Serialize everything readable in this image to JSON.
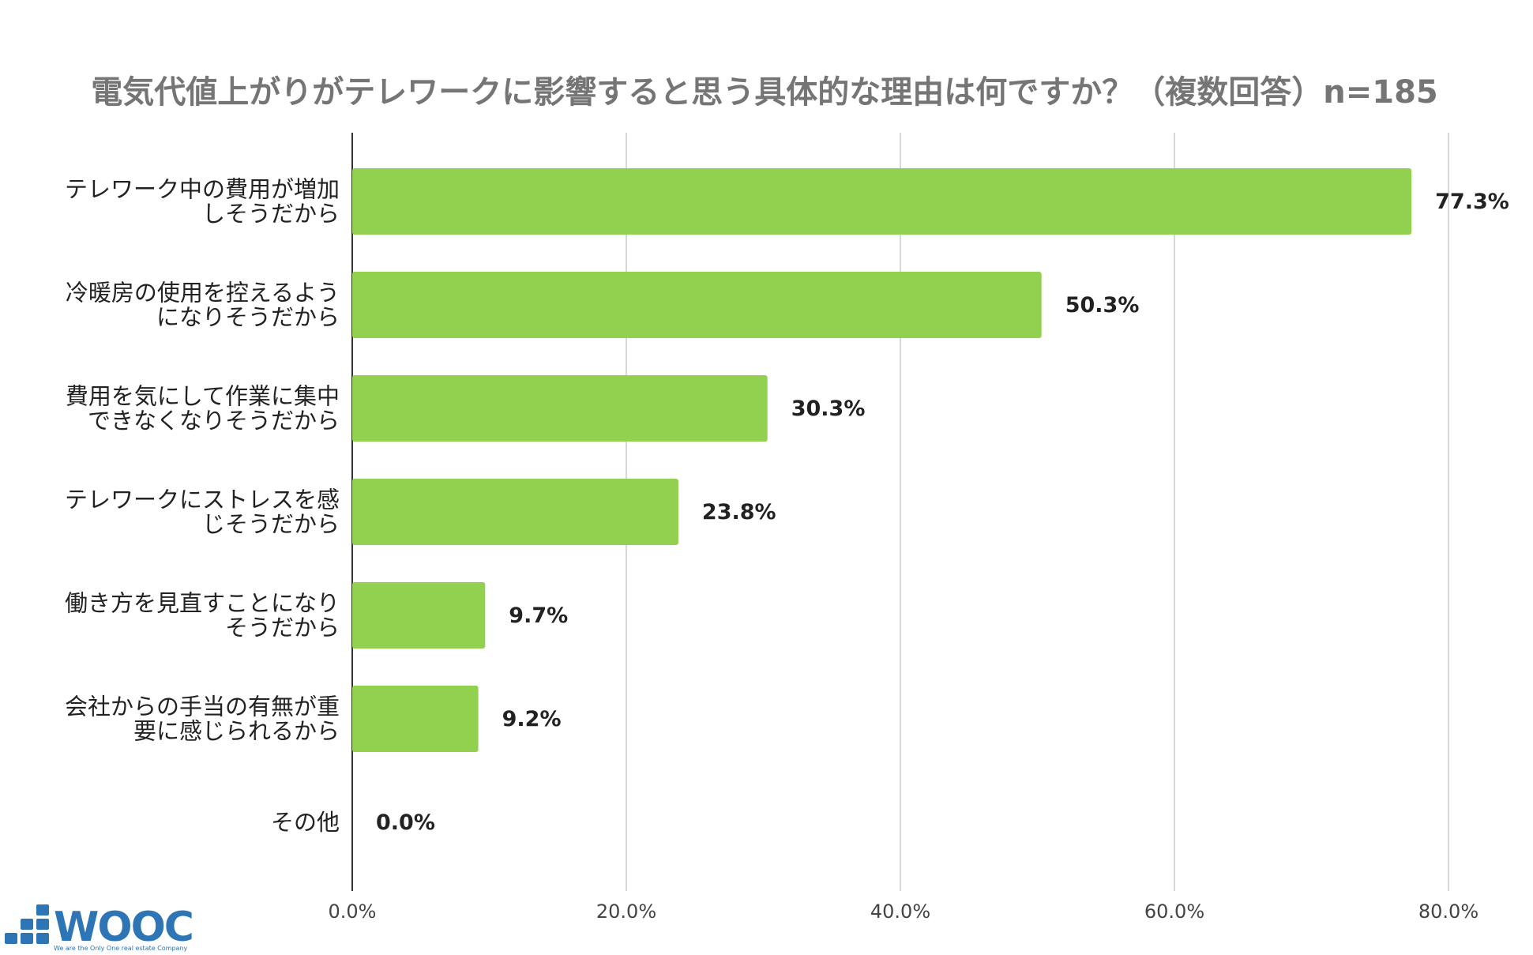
{
  "chart_data": {
    "type": "bar",
    "orientation": "horizontal",
    "title": "電気代値上がりがテレワークに影響すると思う具体的な理由は何ですか？（複数回答）n=185",
    "categories": [
      [
        "テレワーク中の費用が増加",
        "しそうだから"
      ],
      [
        "冷暖房の使用を控えるよう",
        "になりそうだから"
      ],
      [
        "費用を気にして作業に集中",
        "できなくなりそうだから"
      ],
      [
        "テレワークにストレスを感",
        "じそうだから"
      ],
      [
        "働き方を見直すことになり",
        "そうだから"
      ],
      [
        "会社からの手当の有無が重",
        "要に感じられるから"
      ],
      [
        "その他"
      ]
    ],
    "values": [
      77.3,
      50.3,
      30.3,
      23.8,
      9.7,
      9.2,
      0.0
    ],
    "value_labels": [
      "77.3%",
      "50.3%",
      "30.3%",
      "23.8%",
      "9.7%",
      "9.2%",
      "0.0%"
    ],
    "xlim": [
      0,
      80
    ],
    "xticks": [
      0,
      20,
      40,
      60,
      80
    ],
    "xtick_labels": [
      "0.0%",
      "20.0%",
      "40.0%",
      "60.0%",
      "80.0%"
    ],
    "xlabel": "",
    "ylabel": "",
    "grid": true,
    "bar_color": "#92d050"
  },
  "logo": {
    "wordmark": "WOOC",
    "tagline": "We are the Only One real estate Company",
    "color": "#2e75b6"
  }
}
